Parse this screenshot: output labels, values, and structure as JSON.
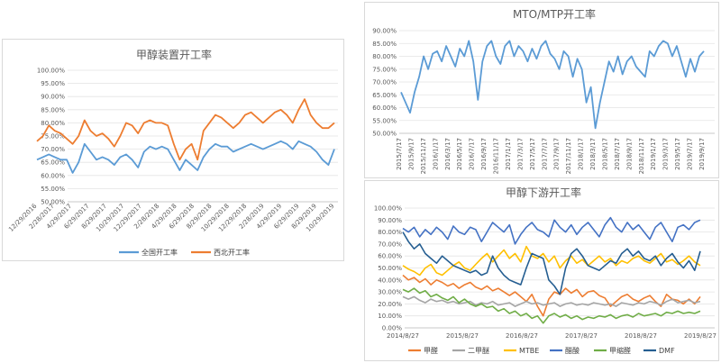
{
  "charts": [
    {
      "title": "甲醇装置开工率",
      "type": "line",
      "yticks": [
        "100.00%",
        "95.00%",
        "90.00%",
        "85.00%",
        "80.00%",
        "75.00%",
        "70.00%",
        "65.00%",
        "60.00%",
        "55.00%",
        "50.00%"
      ],
      "xticks": [
        "12/29/2016",
        "2/28/2017",
        "4/29/2017",
        "6/29/2017",
        "8/29/2017",
        "10/29/2017",
        "12/29/2017",
        "2/28/2018",
        "4/29/2018",
        "6/29/2018",
        "8/29/2018",
        "10/29/2018",
        "12/29/2018",
        "2/28/2019",
        "4/29/2019",
        "6/29/2019",
        "8/29/2019",
        "10/29/2019"
      ],
      "legend": [
        "全国开工率",
        "西北开工率"
      ],
      "colors": [
        "#5b9bd5",
        "#ed7d31"
      ]
    },
    {
      "title": "MTO/MTP开工率",
      "type": "line",
      "yticks": [
        "90.00%",
        "85.00%",
        "80.00%",
        "75.00%",
        "70.00%",
        "65.00%",
        "60.00%",
        "55.00%",
        "50.00%"
      ],
      "xticks": [
        "2015/7/17",
        "2015/9/17",
        "2015/11/17",
        "2016/1/17",
        "2016/3/17",
        "2016/5/17",
        "2016/7/17",
        "2016/9/17",
        "2016/11/17",
        "2017/1/17",
        "2017/3/17",
        "2017/5/17",
        "2017/7/17",
        "2017/9/17",
        "2017/11/17",
        "2018/1/17",
        "2018/3/17",
        "2018/5/17",
        "2018/7/17",
        "2018/9/17",
        "2018/11/17",
        "2019/1/17",
        "2019/3/17",
        "2019/5/17",
        "2019/7/17",
        "2019/9/17"
      ],
      "colors": [
        "#5b9bd5"
      ]
    },
    {
      "title": "甲醇下游开工率",
      "type": "line",
      "yticks": [
        "100.00%",
        "90.00%",
        "80.00%",
        "70.00%",
        "60.00%",
        "50.00%",
        "40.00%",
        "30.00%",
        "20.00%",
        "10.00%",
        "0.00%"
      ],
      "xticks": [
        "2014/8/27",
        "2015/8/27",
        "2016/8/27",
        "2017/8/27",
        "2018/8/27",
        "2019/8/27"
      ],
      "legend": [
        "甲醛",
        "二甲醚",
        "MTBE",
        "醋酸",
        "甲缩醛",
        "DMF"
      ],
      "colors": [
        "#ed7d31",
        "#a5a5a5",
        "#ffc000",
        "#4472c4",
        "#70ad47",
        "#255e91"
      ]
    }
  ],
  "chart_data": [
    {
      "type": "line",
      "title": "甲醇装置开工率",
      "ylim": [
        0.5,
        1.0
      ],
      "x_range": [
        "12/29/2016",
        "10/29/2019"
      ],
      "series": [
        {
          "name": "全国开工率",
          "values": [
            0.66,
            0.67,
            0.68,
            0.67,
            0.66,
            0.66,
            0.61,
            0.65,
            0.72,
            0.69,
            0.66,
            0.67,
            0.66,
            0.64,
            0.67,
            0.68,
            0.66,
            0.63,
            0.69,
            0.71,
            0.7,
            0.71,
            0.7,
            0.66,
            0.62,
            0.66,
            0.64,
            0.62,
            0.67,
            0.7,
            0.72,
            0.71,
            0.71,
            0.69,
            0.7,
            0.71,
            0.72,
            0.71,
            0.7,
            0.71,
            0.72,
            0.73,
            0.72,
            0.7,
            0.73,
            0.72,
            0.71,
            0.69,
            0.66,
            0.64,
            0.7
          ]
        },
        {
          "name": "西北开工率",
          "values": [
            0.73,
            0.75,
            0.79,
            0.77,
            0.76,
            0.74,
            0.72,
            0.75,
            0.81,
            0.77,
            0.75,
            0.76,
            0.74,
            0.71,
            0.75,
            0.8,
            0.79,
            0.76,
            0.8,
            0.81,
            0.8,
            0.8,
            0.79,
            0.72,
            0.66,
            0.7,
            0.72,
            0.66,
            0.77,
            0.8,
            0.83,
            0.82,
            0.8,
            0.78,
            0.8,
            0.83,
            0.84,
            0.82,
            0.8,
            0.82,
            0.84,
            0.85,
            0.83,
            0.8,
            0.85,
            0.89,
            0.83,
            0.8,
            0.78,
            0.78,
            0.8
          ]
        }
      ]
    },
    {
      "type": "line",
      "title": "MTO/MTP开工率",
      "ylim": [
        0.5,
        0.9
      ],
      "x_range": [
        "2015/7/17",
        "2019/9/17"
      ],
      "series": [
        {
          "name": "",
          "values": [
            0.66,
            0.62,
            0.58,
            0.66,
            0.72,
            0.8,
            0.75,
            0.81,
            0.82,
            0.78,
            0.84,
            0.8,
            0.76,
            0.83,
            0.8,
            0.86,
            0.78,
            0.63,
            0.78,
            0.84,
            0.86,
            0.8,
            0.77,
            0.84,
            0.86,
            0.8,
            0.84,
            0.82,
            0.78,
            0.83,
            0.79,
            0.84,
            0.86,
            0.81,
            0.79,
            0.75,
            0.82,
            0.8,
            0.72,
            0.79,
            0.75,
            0.62,
            0.68,
            0.52,
            0.62,
            0.7,
            0.78,
            0.74,
            0.8,
            0.73,
            0.78,
            0.8,
            0.76,
            0.74,
            0.72,
            0.82,
            0.8,
            0.84,
            0.86,
            0.85,
            0.8,
            0.84,
            0.78,
            0.72,
            0.79,
            0.74,
            0.8,
            0.82
          ]
        }
      ]
    },
    {
      "type": "line",
      "title": "甲醇下游开工率",
      "ylim": [
        0.0,
        1.0
      ],
      "x_range": [
        "2014/8/27",
        "2019/10/17"
      ],
      "series": [
        {
          "name": "甲醛",
          "values": [
            0.44,
            0.4,
            0.42,
            0.38,
            0.41,
            0.36,
            0.4,
            0.38,
            0.35,
            0.37,
            0.33,
            0.36,
            0.38,
            0.34,
            0.32,
            0.35,
            0.31,
            0.33,
            0.3,
            0.27,
            0.3,
            0.26,
            0.22,
            0.28,
            0.18,
            0.1,
            0.24,
            0.3,
            0.28,
            0.33,
            0.29,
            0.32,
            0.26,
            0.3,
            0.31,
            0.27,
            0.25,
            0.18,
            0.22,
            0.26,
            0.28,
            0.24,
            0.22,
            0.25,
            0.27,
            0.22,
            0.18,
            0.28,
            0.24,
            0.23,
            0.2,
            0.24,
            0.2,
            0.26
          ]
        },
        {
          "name": "二甲醚",
          "values": [
            0.26,
            0.24,
            0.26,
            0.23,
            0.21,
            0.24,
            0.22,
            0.23,
            0.21,
            0.22,
            0.2,
            0.21,
            0.22,
            0.19,
            0.21,
            0.2,
            0.22,
            0.19,
            0.2,
            0.21,
            0.18,
            0.2,
            0.22,
            0.2,
            0.21,
            0.19,
            0.2,
            0.21,
            0.18,
            0.2,
            0.21,
            0.19,
            0.2,
            0.19,
            0.21,
            0.2,
            0.19,
            0.2,
            0.18,
            0.21,
            0.2,
            0.19,
            0.21,
            0.2,
            0.22,
            0.21,
            0.19,
            0.22,
            0.24,
            0.21,
            0.22,
            0.23,
            0.21,
            0.22
          ]
        },
        {
          "name": "MTBE",
          "values": [
            0.52,
            0.49,
            0.47,
            0.44,
            0.5,
            0.53,
            0.46,
            0.44,
            0.48,
            0.52,
            0.55,
            0.5,
            0.48,
            0.53,
            0.58,
            0.62,
            0.55,
            0.6,
            0.65,
            0.58,
            0.62,
            0.55,
            0.68,
            0.6,
            0.58,
            0.62,
            0.55,
            0.6,
            0.5,
            0.56,
            0.6,
            0.54,
            0.57,
            0.52,
            0.56,
            0.6,
            0.55,
            0.58,
            0.52,
            0.56,
            0.54,
            0.58,
            0.6,
            0.56,
            0.54,
            0.58,
            0.62,
            0.55,
            0.57,
            0.53,
            0.56,
            0.6,
            0.55,
            0.52
          ]
        },
        {
          "name": "醋酸",
          "values": [
            0.83,
            0.8,
            0.84,
            0.76,
            0.82,
            0.78,
            0.84,
            0.8,
            0.74,
            0.85,
            0.8,
            0.78,
            0.84,
            0.82,
            0.72,
            0.8,
            0.88,
            0.84,
            0.8,
            0.86,
            0.7,
            0.78,
            0.84,
            0.88,
            0.82,
            0.8,
            0.76,
            0.9,
            0.84,
            0.8,
            0.86,
            0.78,
            0.84,
            0.88,
            0.82,
            0.76,
            0.86,
            0.92,
            0.84,
            0.8,
            0.88,
            0.82,
            0.86,
            0.8,
            0.74,
            0.84,
            0.88,
            0.8,
            0.72,
            0.84,
            0.86,
            0.82,
            0.88,
            0.9
          ]
        },
        {
          "name": "甲缩醛",
          "values": [
            0.32,
            0.3,
            0.33,
            0.29,
            0.31,
            0.26,
            0.28,
            0.25,
            0.23,
            0.26,
            0.21,
            0.24,
            0.2,
            0.18,
            0.2,
            0.17,
            0.18,
            0.14,
            0.16,
            0.12,
            0.14,
            0.1,
            0.12,
            0.08,
            0.1,
            0.04,
            0.1,
            0.12,
            0.09,
            0.11,
            0.08,
            0.1,
            0.07,
            0.09,
            0.08,
            0.1,
            0.09,
            0.11,
            0.08,
            0.1,
            0.11,
            0.09,
            0.12,
            0.1,
            0.11,
            0.12,
            0.1,
            0.13,
            0.12,
            0.14,
            0.12,
            0.13,
            0.12,
            0.14
          ]
        },
        {
          "name": "DMF",
          "values": [
            0.8,
            0.72,
            0.66,
            0.7,
            0.62,
            0.58,
            0.54,
            0.6,
            0.56,
            0.52,
            0.5,
            0.48,
            0.46,
            0.48,
            0.44,
            0.46,
            0.6,
            0.5,
            0.44,
            0.4,
            0.38,
            0.36,
            0.5,
            0.62,
            0.6,
            0.58,
            0.4,
            0.35,
            0.28,
            0.5,
            0.62,
            0.66,
            0.6,
            0.52,
            0.5,
            0.48,
            0.52,
            0.56,
            0.54,
            0.62,
            0.66,
            0.6,
            0.64,
            0.58,
            0.56,
            0.6,
            0.52,
            0.58,
            0.62,
            0.55,
            0.5,
            0.56,
            0.48,
            0.64
          ]
        }
      ]
    }
  ]
}
